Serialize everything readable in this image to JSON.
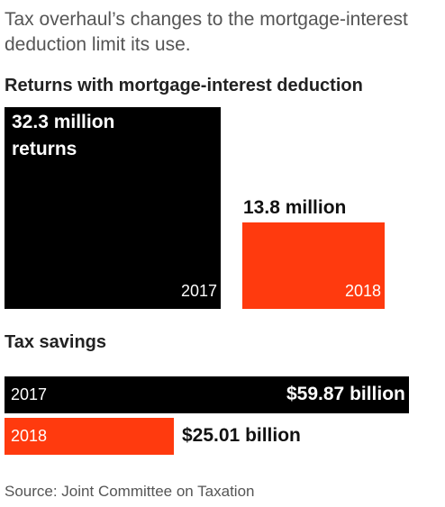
{
  "subtitle": "Tax overhaul’s changes to the mortgage-interest deduction limit its use.",
  "source": "Source: Joint Committee on Taxation",
  "colors": {
    "year_2017": "#000000",
    "year_2018": "#ff3a0e"
  },
  "chart_data": [
    {
      "type": "bar",
      "title": "Returns with mortgage-interest deduction",
      "categories": [
        "2017",
        "2018"
      ],
      "values": [
        32.3,
        13.8
      ],
      "unit": "million returns",
      "data_labels": [
        "32.3 million returns",
        "13.8 million"
      ],
      "label_lines": [
        [
          "32.3 million",
          "returns"
        ],
        [
          "13.8 million"
        ]
      ]
    },
    {
      "type": "bar",
      "orientation": "horizontal",
      "title": "Tax savings",
      "categories": [
        "2017",
        "2018"
      ],
      "values": [
        59.87,
        25.01
      ],
      "unit": "billion dollars",
      "data_labels": [
        "$59.87 billion",
        "$25.01 billion"
      ]
    }
  ]
}
